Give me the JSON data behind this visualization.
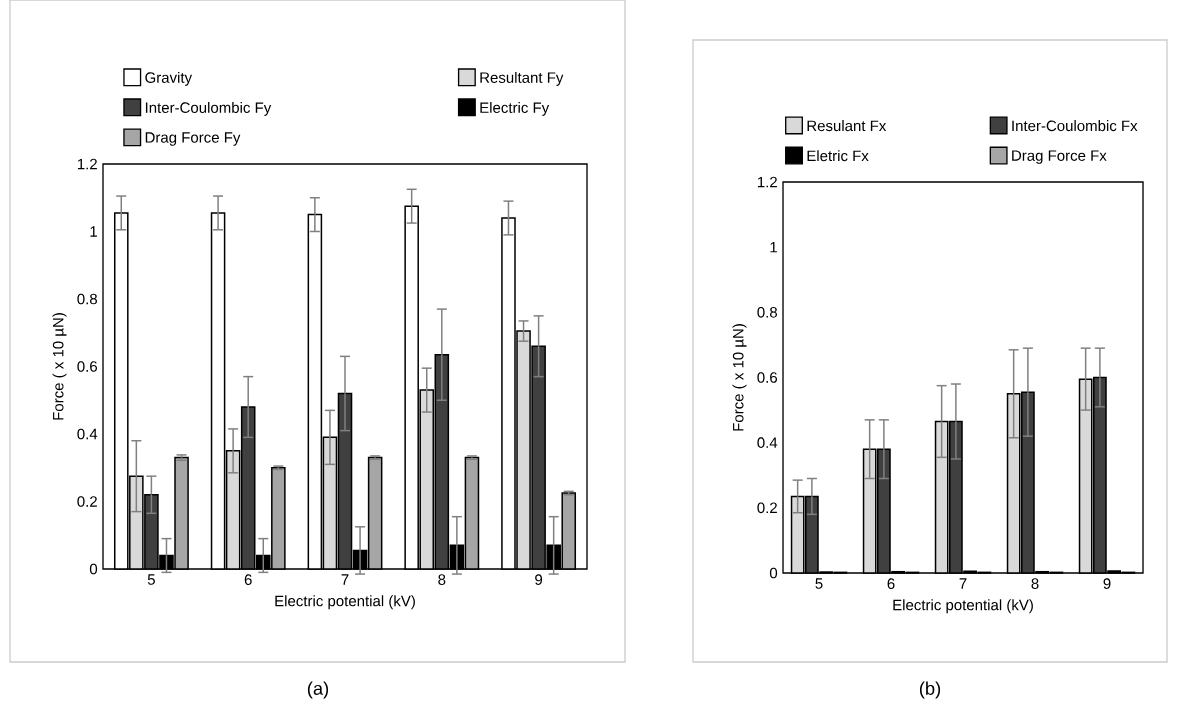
{
  "chart_data": [
    {
      "type": "bar",
      "xlabel": "Electric potential (kV)",
      "ylabel": "Force ( x 10 µN)",
      "categories": [
        "5",
        "6",
        "7",
        "8",
        "9"
      ],
      "ylim": [
        0,
        1.2
      ],
      "yticks": [
        0,
        0.2,
        0.4,
        0.6,
        0.8,
        1,
        1.2
      ],
      "legend": "top",
      "annotations": [
        "(a)"
      ],
      "series": [
        {
          "name": "Gravity",
          "color": "#ffffff",
          "values": [
            1.055,
            1.055,
            1.05,
            1.075,
            1.04
          ],
          "errors": [
            0.05,
            0.05,
            0.05,
            0.05,
            0.05
          ]
        },
        {
          "name": "Resultant Fy",
          "color": "#d9d9d9",
          "values": [
            0.275,
            0.35,
            0.39,
            0.53,
            0.705
          ],
          "errors": [
            0.105,
            0.065,
            0.08,
            0.065,
            0.03
          ]
        },
        {
          "name": "Inter-Coulombic Fy",
          "color": "#404040",
          "values": [
            0.22,
            0.48,
            0.52,
            0.635,
            0.66
          ],
          "errors": [
            0.055,
            0.09,
            0.11,
            0.135,
            0.09
          ]
        },
        {
          "name": "Electric Fy",
          "color": "#000000",
          "values": [
            0.04,
            0.04,
            0.055,
            0.07,
            0.07
          ],
          "errors": [
            0.05,
            0.05,
            0.07,
            0.085,
            0.085
          ]
        },
        {
          "name": "Drag Force Fy",
          "color": "#a6a6a6",
          "values": [
            0.33,
            0.3,
            0.33,
            0.33,
            0.225
          ],
          "errors": [
            0.008,
            0.005,
            0.005,
            0.005,
            0.005
          ]
        }
      ]
    },
    {
      "type": "bar",
      "xlabel": "Electric potential (kV)",
      "ylabel": "Force ( x 10 µN)",
      "categories": [
        "5",
        "6",
        "7",
        "8",
        "9"
      ],
      "ylim": [
        0,
        1.2
      ],
      "yticks": [
        0,
        0.2,
        0.4,
        0.6,
        0.8,
        1,
        1.2
      ],
      "legend": "top",
      "annotations": [
        "(b)"
      ],
      "series": [
        {
          "name": "Resulant Fx",
          "color": "#d9d9d9",
          "values": [
            0.235,
            0.38,
            0.465,
            0.55,
            0.595
          ],
          "errors": [
            0.05,
            0.09,
            0.11,
            0.135,
            0.095
          ]
        },
        {
          "name": "Inter-Coulombic Fx",
          "color": "#404040",
          "values": [
            0.235,
            0.38,
            0.465,
            0.555,
            0.6
          ],
          "errors": [
            0.055,
            0.09,
            0.115,
            0.135,
            0.09
          ]
        },
        {
          "name": "Eletric Fx",
          "color": "#000000",
          "values": [
            0.003,
            0.004,
            0.005,
            0.004,
            0.006
          ]
        },
        {
          "name": "Drag Force Fx",
          "color": "#a6a6a6",
          "values": [
            0.002,
            0.002,
            0.002,
            0.002,
            0.002
          ]
        }
      ]
    }
  ]
}
